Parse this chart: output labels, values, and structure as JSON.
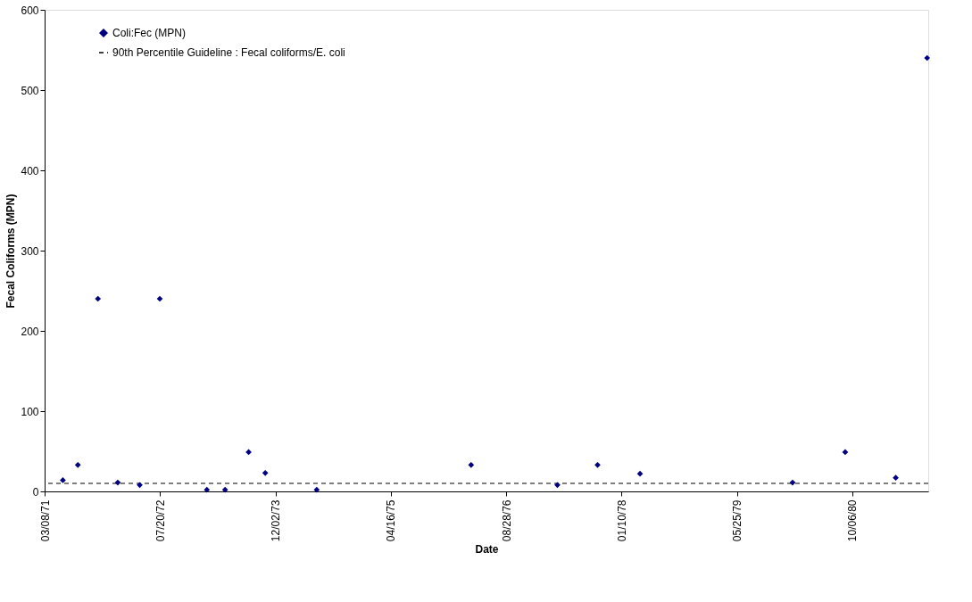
{
  "chart_data": {
    "type": "scatter",
    "xlabel": "Date",
    "ylabel": "Fecal Coliforms (MPN)",
    "x": [
      "1971-05-26",
      "1971-07-30",
      "1971-10-25",
      "1972-01-19",
      "1972-04-23",
      "1972-07-19",
      "1973-02-08",
      "1973-04-28",
      "1973-08-08",
      "1973-10-19",
      "1974-05-30",
      "1976-03-29",
      "1977-04-07",
      "1977-09-28",
      "1978-03-31",
      "1980-01-21",
      "1980-09-05",
      "1981-04-12",
      "1981-08-26"
    ],
    "series": [
      {
        "name": "Coli:Fec (MPN)",
        "color": "#000080",
        "values": [
          14,
          33,
          240,
          11,
          8,
          240,
          2,
          2,
          49,
          23,
          2,
          33,
          8,
          33,
          22,
          11,
          49,
          17,
          540
        ]
      }
    ],
    "marker": "diamond",
    "grid": false,
    "legend": "top left",
    "xlim": [
      "1971-03-08",
      "1981-08-31"
    ],
    "xticks": [
      {
        "value": "1971-03-08",
        "label": "03/08/71"
      },
      {
        "value": "1972-07-20",
        "label": "07/20/72"
      },
      {
        "value": "1973-12-02",
        "label": "12/02/73"
      },
      {
        "value": "1975-04-16",
        "label": "04/16/75"
      },
      {
        "value": "1976-08-28",
        "label": "08/28/76"
      },
      {
        "value": "1978-01-10",
        "label": "01/10/78"
      },
      {
        "value": "1979-05-25",
        "label": "05/25/79"
      },
      {
        "value": "1980-10-06",
        "label": "10/06/80"
      }
    ],
    "ylim": [
      0,
      600
    ],
    "yticks": [
      0,
      100,
      200,
      300,
      400,
      500,
      600
    ],
    "ref_lines": [
      {
        "axis": "y",
        "value": 10,
        "label": "90th Percentile Guideline : Fecal coliforms/E. coli",
        "color": "#000000",
        "line_style": "dashed"
      }
    ]
  }
}
